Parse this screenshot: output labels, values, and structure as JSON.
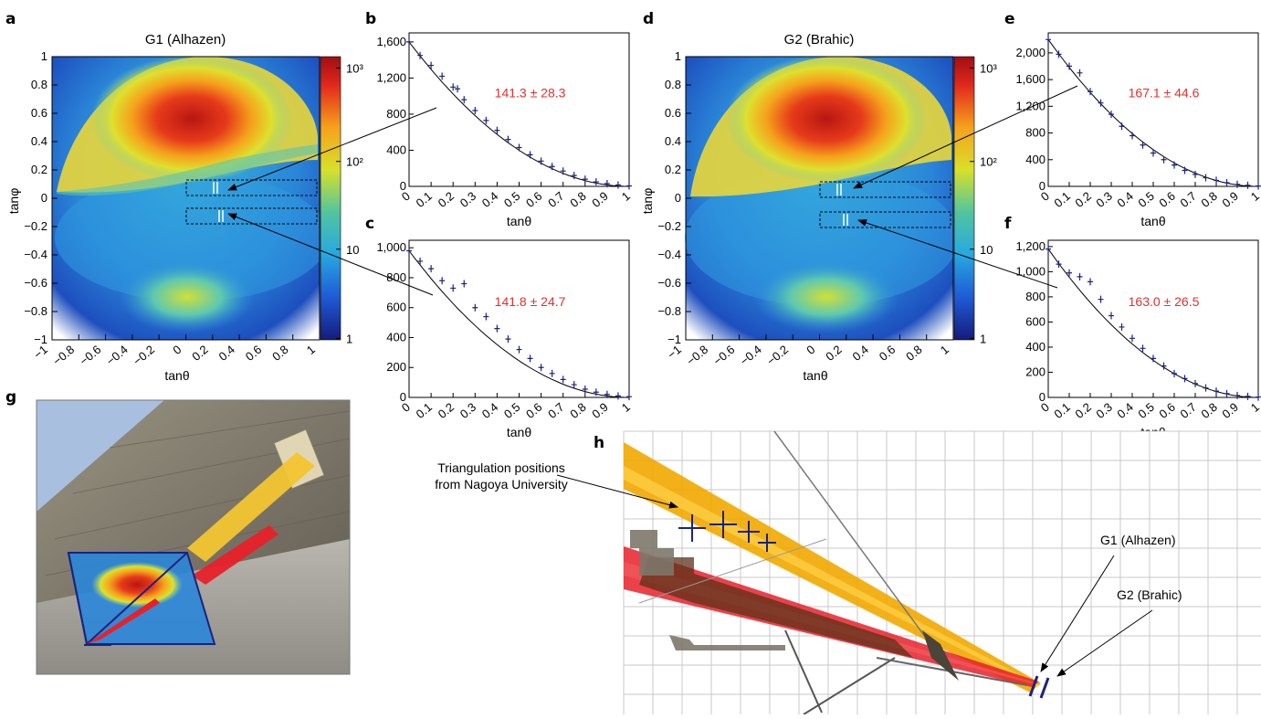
{
  "panel_letters": {
    "a": "a",
    "b": "b",
    "c": "c",
    "d": "d",
    "e": "e",
    "f": "f",
    "g": "g",
    "h": "h"
  },
  "axis_labels": {
    "tan_theta": "tanθ",
    "tan_phi": "tanφ"
  },
  "heatmap_ticks": {
    "x": [
      "−1",
      "−0.8",
      "−0.6",
      "−0.4",
      "−0.2",
      "0",
      "0.2",
      "0.4",
      "0.6",
      "0.8",
      "1"
    ],
    "y": [
      "1",
      "0.8",
      "0.6",
      "0.4",
      "0.2",
      "0",
      "−0.2",
      "−0.4",
      "−0.6",
      "−0.8",
      "−1"
    ],
    "colorbar": [
      "10³",
      "10²",
      "10",
      "1"
    ]
  },
  "slope_ticks": [
    "0",
    "0.1",
    "0.2",
    "0.3",
    "0.4",
    "0.5",
    "0.6",
    "0.7",
    "0.8",
    "0.9",
    "1"
  ],
  "annotations": {
    "triangulation": [
      "Triangulation positions",
      "from Nagoya University"
    ],
    "g1_label": "G1 (Alhazen)",
    "g2_label": "G2 (Brahic)"
  },
  "colors": {
    "fit_label": "#e0312f",
    "points": "#1a237e",
    "orange_band": "#f2a900",
    "red_band": "#e8202a"
  },
  "chart_data": [
    {
      "id": "a",
      "type": "heatmap",
      "title": "G1 (Alhazen)",
      "xlabel": "tanθ",
      "ylabel": "tanφ",
      "xlim": [
        -1,
        1
      ],
      "ylim": [
        -1,
        1
      ],
      "colorbar": {
        "scale": "log",
        "range": [
          1,
          1500
        ],
        "ticks": [
          "1",
          "10",
          "10²",
          "10³"
        ]
      }
    },
    {
      "id": "b",
      "type": "scatter",
      "xlabel": "tanθ",
      "xlim": [
        0,
        1
      ],
      "ylim": [
        0,
        1700
      ],
      "yticks": [
        "0",
        "400",
        "800",
        "1,200",
        "1,600"
      ],
      "fit_label": "141.3 ± 28.3",
      "x": [
        0.0,
        0.05,
        0.1,
        0.15,
        0.2,
        0.22,
        0.25,
        0.3,
        0.35,
        0.4,
        0.45,
        0.5,
        0.55,
        0.6,
        0.65,
        0.7,
        0.75,
        0.8,
        0.85,
        0.9,
        0.95,
        1.0
      ],
      "y": [
        1600,
        1450,
        1340,
        1220,
        1100,
        1080,
        960,
        840,
        730,
        620,
        520,
        430,
        350,
        280,
        220,
        170,
        120,
        80,
        50,
        30,
        15,
        5
      ]
    },
    {
      "id": "c",
      "type": "scatter",
      "xlabel": "tanθ",
      "xlim": [
        0,
        1
      ],
      "ylim": [
        0,
        1050
      ],
      "yticks": [
        "0",
        "200",
        "400",
        "600",
        "800",
        "1,000"
      ],
      "fit_label": "141.8 ± 24.7",
      "x": [
        0.0,
        0.05,
        0.1,
        0.15,
        0.2,
        0.25,
        0.3,
        0.35,
        0.4,
        0.45,
        0.5,
        0.55,
        0.6,
        0.65,
        0.7,
        0.75,
        0.8,
        0.85,
        0.9,
        0.95,
        1.0
      ],
      "y": [
        980,
        910,
        860,
        780,
        730,
        760,
        600,
        540,
        460,
        390,
        320,
        260,
        200,
        160,
        120,
        85,
        55,
        35,
        20,
        10,
        5
      ]
    },
    {
      "id": "d",
      "type": "heatmap",
      "title": "G2 (Brahic)",
      "xlabel": "tanθ",
      "ylabel": "tanφ",
      "xlim": [
        -1,
        1
      ],
      "ylim": [
        -1,
        1
      ],
      "colorbar": {
        "scale": "log",
        "range": [
          1,
          1500
        ],
        "ticks": [
          "1",
          "10",
          "10²",
          "10³"
        ]
      }
    },
    {
      "id": "e",
      "type": "scatter",
      "xlabel": "tanθ",
      "xlim": [
        0,
        1
      ],
      "ylim": [
        0,
        2300
      ],
      "yticks": [
        "0",
        "400",
        "800",
        "1,200",
        "1,600",
        "2,000"
      ],
      "fit_label": "167.1 ± 44.6",
      "x": [
        0.0,
        0.05,
        0.1,
        0.15,
        0.2,
        0.25,
        0.3,
        0.35,
        0.4,
        0.45,
        0.5,
        0.55,
        0.6,
        0.65,
        0.7,
        0.75,
        0.8,
        0.85,
        0.9,
        0.95,
        1.0
      ],
      "y": [
        2200,
        1980,
        1800,
        1700,
        1420,
        1250,
        1080,
        900,
        760,
        620,
        500,
        400,
        320,
        240,
        180,
        130,
        90,
        55,
        30,
        15,
        5
      ]
    },
    {
      "id": "f",
      "type": "scatter",
      "xlabel": "tanθ",
      "xlim": [
        0,
        1
      ],
      "ylim": [
        0,
        1250
      ],
      "yticks": [
        "0",
        "200",
        "400",
        "600",
        "800",
        "1,000",
        "1,200"
      ],
      "fit_label": "163.0 ± 26.5",
      "x": [
        0.0,
        0.05,
        0.1,
        0.15,
        0.2,
        0.25,
        0.3,
        0.35,
        0.4,
        0.45,
        0.5,
        0.55,
        0.6,
        0.65,
        0.7,
        0.75,
        0.8,
        0.85,
        0.9,
        0.95,
        1.0
      ],
      "y": [
        1180,
        1060,
        990,
        960,
        920,
        780,
        650,
        560,
        470,
        390,
        310,
        250,
        190,
        150,
        110,
        75,
        50,
        30,
        15,
        8,
        3
      ]
    }
  ]
}
